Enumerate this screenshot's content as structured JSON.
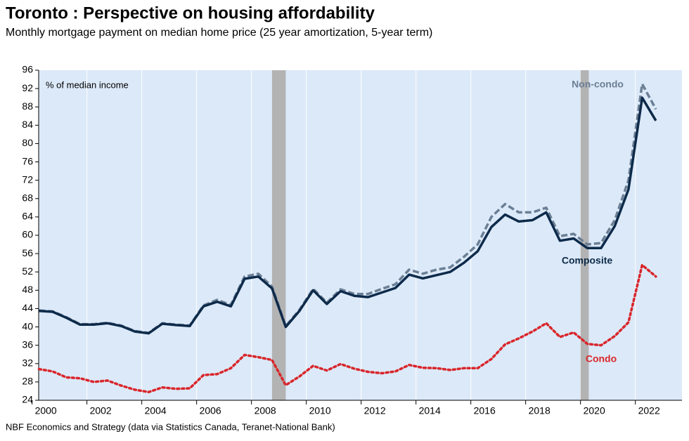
{
  "chart_data": {
    "type": "line",
    "title": "Toronto : Perspective on housing affordability",
    "subtitle": "Monthly mortgage payment on median home price (25 year amortization, 5-year term)",
    "y_label": "% of median income",
    "source": "NBF Economics and Strategy (data via Statistics Canada, Teranet-National Bank)",
    "x": [
      2000.25,
      2000.75,
      2001.25,
      2001.75,
      2002.25,
      2002.75,
      2003.25,
      2003.75,
      2004.25,
      2004.75,
      2005.25,
      2005.75,
      2006.25,
      2006.75,
      2007.25,
      2007.75,
      2008.25,
      2008.75,
      2009.25,
      2009.75,
      2010.25,
      2010.75,
      2011.25,
      2011.75,
      2012.25,
      2012.75,
      2013.25,
      2013.75,
      2014.25,
      2014.75,
      2015.25,
      2015.75,
      2016.25,
      2016.75,
      2017.25,
      2017.75,
      2018.25,
      2018.75,
      2019.25,
      2019.75,
      2020.25,
      2020.75,
      2021.25,
      2021.75,
      2022.25,
      2022.75
    ],
    "series": [
      {
        "name": "Non-condo",
        "color": "#6b7f95",
        "style": "dashed",
        "values": [
          43.6,
          43.4,
          42.1,
          40.6,
          40.6,
          40.9,
          40.3,
          39.1,
          38.7,
          40.8,
          40.5,
          40.3,
          44.7,
          45.9,
          44.8,
          51.0,
          51.6,
          48.8,
          40.2,
          43.7,
          48.3,
          45.3,
          48.2,
          47.2,
          47.2,
          48.3,
          49.3,
          52.5,
          51.6,
          52.5,
          53.0,
          55.3,
          58.0,
          64.0,
          66.8,
          65.0,
          65.0,
          66.0,
          59.8,
          60.3,
          58.0,
          58.3,
          63.3,
          72.0,
          93.0,
          87.5
        ]
      },
      {
        "name": "Composite",
        "color": "#0d2a4a",
        "style": "solid",
        "values": [
          43.5,
          43.3,
          42.0,
          40.5,
          40.5,
          40.8,
          40.2,
          39.0,
          38.6,
          40.7,
          40.4,
          40.2,
          44.5,
          45.5,
          44.5,
          50.5,
          51.0,
          48.4,
          40.0,
          43.5,
          48.0,
          45.0,
          47.8,
          46.8,
          46.5,
          47.5,
          48.5,
          51.4,
          50.6,
          51.3,
          52.0,
          54.0,
          56.5,
          61.8,
          64.5,
          63.0,
          63.3,
          65.0,
          58.8,
          59.3,
          57.2,
          57.2,
          62.0,
          70.0,
          90.0,
          85.0
        ]
      },
      {
        "name": "Condo",
        "color": "#d9262b",
        "style": "dotted",
        "values": [
          30.8,
          30.3,
          29.0,
          28.8,
          28.0,
          28.3,
          27.2,
          26.3,
          25.8,
          26.8,
          26.5,
          26.6,
          29.5,
          29.7,
          31.0,
          33.9,
          33.4,
          32.8,
          27.3,
          29.2,
          31.5,
          30.5,
          31.9,
          30.9,
          30.2,
          29.9,
          30.3,
          31.7,
          31.1,
          31.0,
          30.6,
          31.0,
          31.0,
          33.0,
          36.2,
          37.5,
          39.0,
          40.8,
          37.8,
          38.8,
          36.3,
          36.0,
          38.0,
          41.0,
          53.5,
          51.0
        ]
      }
    ],
    "shaded_periods": [
      [
        2008.75,
        2009.25
      ],
      [
        2020.0,
        2020.3
      ]
    ],
    "xlim": [
      2000.24,
      2023.7
    ],
    "xticks": [
      2000,
      2002,
      2004,
      2006,
      2008,
      2010,
      2012,
      2014,
      2016,
      2018,
      2020,
      2022
    ],
    "ylim": [
      24,
      96
    ],
    "yticks": [
      24,
      28,
      32,
      36,
      40,
      44,
      48,
      52,
      56,
      60,
      64,
      68,
      72,
      76,
      80,
      84,
      88,
      92,
      96
    ],
    "grid": true,
    "background": "#dce9f8"
  }
}
